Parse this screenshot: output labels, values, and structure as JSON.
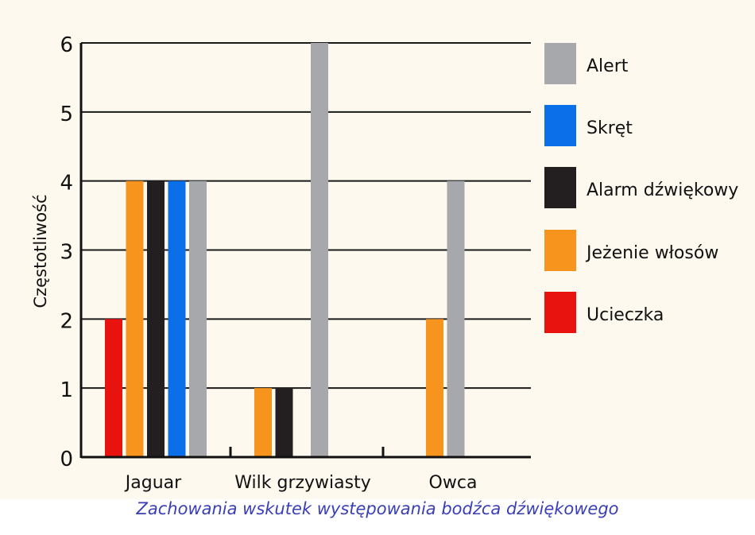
{
  "caption": "Zachowania wskutek występowania bodźca dźwiękowego",
  "colors": {
    "background": "#fdf9ee",
    "grid": "#1a1a1a",
    "caption": "#3a3fb5"
  },
  "chart_data": {
    "type": "bar",
    "title": "",
    "xlabel": "",
    "ylabel": "Częstotliwość",
    "ylim": [
      0,
      6
    ],
    "yticks": [
      "0",
      "1",
      "2",
      "3",
      "4",
      "5",
      "6"
    ],
    "grid": true,
    "legend_position": "right",
    "categories": [
      "Jaguar",
      "Wilk grzywiasty",
      "Owca"
    ],
    "series": [
      {
        "name": "Ucieczka",
        "color": "#e8130f",
        "values": [
          2,
          0,
          0
        ]
      },
      {
        "name": "Jeżenie włosów",
        "color": "#f7941d",
        "values": [
          4,
          1,
          2
        ]
      },
      {
        "name": "Alarm dźwiękowy",
        "color": "#231f20",
        "values": [
          4,
          1,
          0
        ]
      },
      {
        "name": "Skręt",
        "color": "#0a6fe8",
        "values": [
          4,
          0,
          0
        ]
      },
      {
        "name": "Alert",
        "color": "#a6a8ab",
        "values": [
          4,
          6,
          4
        ]
      }
    ],
    "legend_order": [
      "Alert",
      "Skręt",
      "Alarm dźwiękowy",
      "Jeżenie włosów",
      "Ucieczka"
    ]
  }
}
